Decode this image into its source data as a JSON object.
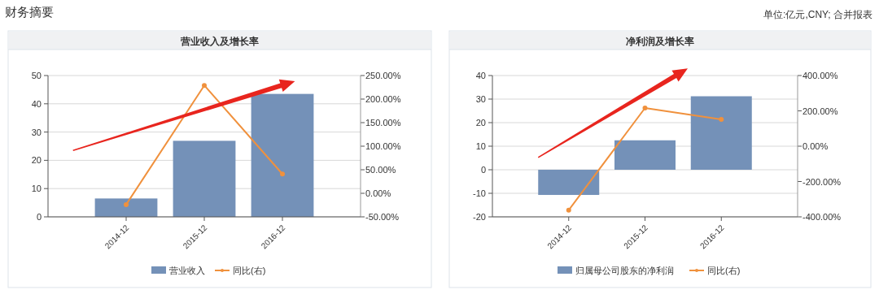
{
  "chart_data": [
    {
      "type": "bar",
      "title": "营业收入及增长率",
      "annotations": [
        "财务摘要",
        "单位:亿元,CNY; 合并报表"
      ],
      "categories": [
        "2014-12",
        "2015-12",
        "2016-12"
      ],
      "series": [
        {
          "name": "营业收入",
          "type": "bar",
          "color": "#7491b8",
          "values": [
            6.5,
            26.9,
            43.5
          ]
        },
        {
          "name": "同比(右)",
          "type": "line",
          "axis": "y2",
          "marker": "circle",
          "color": "#f0913d",
          "values": [
            -24,
            229,
            41
          ]
        }
      ],
      "ylim": [
        0,
        50
      ],
      "yticks": [
        0,
        10,
        20,
        30,
        40,
        50
      ],
      "y2lim": [
        -50,
        250
      ],
      "y2ticks": [
        {
          "value": -50,
          "label": "-50.00%"
        },
        {
          "value": 0,
          "label": "0.00%"
        },
        {
          "value": 50,
          "label": "50.00%"
        },
        {
          "value": 100,
          "label": "100.00%"
        },
        {
          "value": 150,
          "label": "150.00%"
        },
        {
          "value": 200,
          "label": "200.00%"
        },
        {
          "value": 250,
          "label": "250.00%"
        }
      ],
      "grid": "y",
      "legend": "bottom"
    },
    {
      "type": "bar",
      "title": "净利润及增长率",
      "categories": [
        "2014-12",
        "2015-12",
        "2016-12"
      ],
      "series": [
        {
          "name": "归属母公司股东的净利润",
          "type": "bar",
          "color": "#7491b8",
          "values": [
            -10.7,
            12.5,
            31.2
          ]
        },
        {
          "name": "同比(右)",
          "type": "line",
          "axis": "y2",
          "marker": "circle",
          "color": "#f0913d",
          "values": [
            -362,
            216,
            152
          ]
        }
      ],
      "ylim": [
        -20,
        40
      ],
      "yticks": [
        -20,
        -10,
        0,
        10,
        20,
        30,
        40
      ],
      "y2lim": [
        -400,
        400
      ],
      "y2ticks": [
        {
          "value": -400,
          "label": "-400.00%"
        },
        {
          "value": -200,
          "label": "-200.00%"
        },
        {
          "value": 0,
          "label": "0.00%"
        },
        {
          "value": 200,
          "label": "200.00%"
        },
        {
          "value": 400,
          "label": "400.00%"
        }
      ],
      "grid": "y",
      "legend": "bottom"
    }
  ]
}
